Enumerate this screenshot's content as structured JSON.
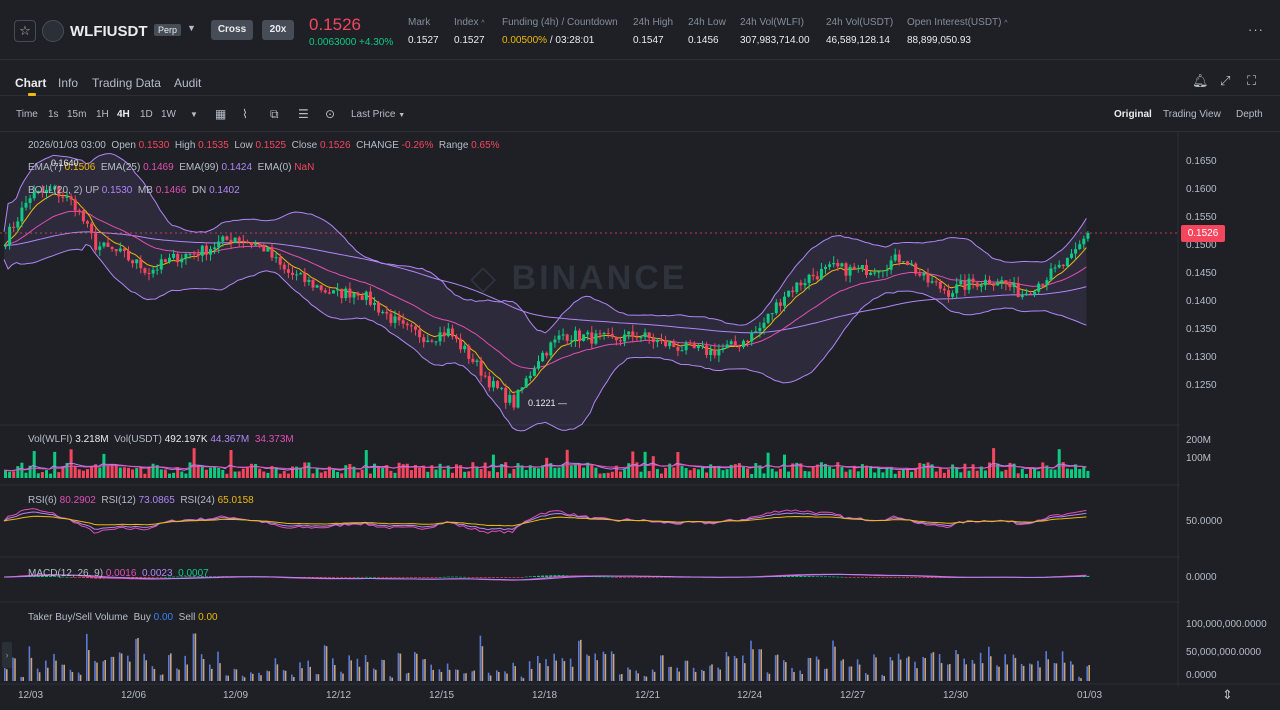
{
  "header": {
    "symbol": "WLFIUSDT",
    "contract_type": "Perp",
    "margin_mode": "Cross",
    "leverage": "20x",
    "last_price": "0.1526",
    "change": "0.0063000 +4.30%",
    "stats": [
      {
        "label": "Mark",
        "value": "0.1527"
      },
      {
        "label": "Index",
        "value": "0.1527"
      },
      {
        "label": "Funding (4h) / Countdown",
        "value_rate": "0.00500%",
        "value_countdown": "/ 03:28:01"
      },
      {
        "label": "24h High",
        "value": "0.1547"
      },
      {
        "label": "24h Low",
        "value": "0.1456"
      },
      {
        "label": "24h Vol(WLFI)",
        "value": "307,983,714.00"
      },
      {
        "label": "24h Vol(USDT)",
        "value": "46,589,128.14"
      },
      {
        "label": "Open Interest(USDT)",
        "value": "88,899,050.93"
      }
    ]
  },
  "tabs": [
    "Chart",
    "Info",
    "Trading Data",
    "Audit"
  ],
  "toolbar": {
    "intervals": [
      "Time",
      "1s",
      "15m",
      "1H",
      "4H",
      "1D",
      "1W"
    ],
    "active_interval": "4H",
    "price_type": "Last Price",
    "views": [
      "Original",
      "Trading View",
      "Depth"
    ],
    "active_view": "Original"
  },
  "legend": {
    "ohlc": {
      "date": "2026/01/03 03:00",
      "open": "0.1530",
      "high": "0.1535",
      "low": "0.1525",
      "close": "0.1526",
      "change": "-0.26%",
      "range": "0.65%"
    },
    "ema": {
      "ema7": "0.1506",
      "ema25": "0.1469",
      "ema99": "0.1424",
      "ema0": "NaN"
    },
    "boll": {
      "up": "0.1530",
      "mb": "0.1466",
      "dn": "0.1402"
    },
    "vol": {
      "wlfi": "3.218M",
      "usdt": "492.197K",
      "ma1": "44.367M",
      "ma2": "34.373M"
    },
    "rsi": {
      "rsi6": "80.2902",
      "rsi12": "73.0865",
      "rsi24": "65.0158"
    },
    "macd": {
      "label": "MACD(12, 26, 9)",
      "dif": "0.0016",
      "dea": "0.0023",
      "hist": "0.0007"
    },
    "taker": {
      "label": "Taker Buy/Sell Volume",
      "buy": "0.00",
      "sell": "0.00"
    }
  },
  "colors": {
    "up": "#0ecb81",
    "down": "#f6465d",
    "ema7": "#f0b90b",
    "ema25": "#e34fb5",
    "ema99": "#b286f7",
    "boll": "#b286f7"
  },
  "chart_data": {
    "type": "candlestick",
    "interval": "4H",
    "x_ticks": [
      "12/03",
      "12/06",
      "12/09",
      "12/12",
      "12/15",
      "12/18",
      "12/21",
      "12/24",
      "12/27",
      "12/30",
      "01/03"
    ],
    "y_ticks": [
      "0.1650",
      "0.1600",
      "0.1550",
      "0.1500",
      "0.1450",
      "0.1400",
      "0.1350",
      "0.1300",
      "0.1250"
    ],
    "ylim": [
      0.1205,
      0.167
    ],
    "annotations": {
      "high": "0.1640",
      "low": "0.1221"
    },
    "current_price": "0.1526",
    "close_keypoints": [
      [
        0,
        0.1515
      ],
      [
        6,
        0.159
      ],
      [
        12,
        0.16
      ],
      [
        17,
        0.1575
      ],
      [
        22,
        0.1505
      ],
      [
        28,
        0.149
      ],
      [
        35,
        0.146
      ],
      [
        42,
        0.1485
      ],
      [
        48,
        0.1495
      ],
      [
        56,
        0.152
      ],
      [
        63,
        0.15
      ],
      [
        68,
        0.146
      ],
      [
        74,
        0.144
      ],
      [
        80,
        0.142
      ],
      [
        86,
        0.1425
      ],
      [
        92,
        0.139
      ],
      [
        97,
        0.136
      ],
      [
        103,
        0.1345
      ],
      [
        108,
        0.1355
      ],
      [
        114,
        0.1305
      ],
      [
        119,
        0.126
      ],
      [
        124,
        0.123
      ],
      [
        130,
        0.131
      ],
      [
        136,
        0.135
      ],
      [
        142,
        0.1345
      ],
      [
        148,
        0.134
      ],
      [
        154,
        0.135
      ],
      [
        160,
        0.1335
      ],
      [
        166,
        0.1325
      ],
      [
        172,
        0.132
      ],
      [
        178,
        0.133
      ],
      [
        184,
        0.136
      ],
      [
        190,
        0.142
      ],
      [
        196,
        0.145
      ],
      [
        202,
        0.1465
      ],
      [
        208,
        0.146
      ],
      [
        214,
        0.147
      ],
      [
        219,
        0.1485
      ],
      [
        224,
        0.1445
      ],
      [
        230,
        0.1425
      ],
      [
        236,
        0.144
      ],
      [
        242,
        0.1445
      ],
      [
        248,
        0.142
      ],
      [
        254,
        0.145
      ],
      [
        260,
        0.148
      ],
      [
        264,
        0.1526
      ]
    ],
    "volume_axis": [
      "200M",
      "100M"
    ],
    "rsi_axis": [
      "50.0000"
    ],
    "macd_axis": [
      "0.0000"
    ],
    "taker_axis": [
      "100,000,000.0000",
      "50,000,000.0000",
      "0.0000"
    ]
  }
}
